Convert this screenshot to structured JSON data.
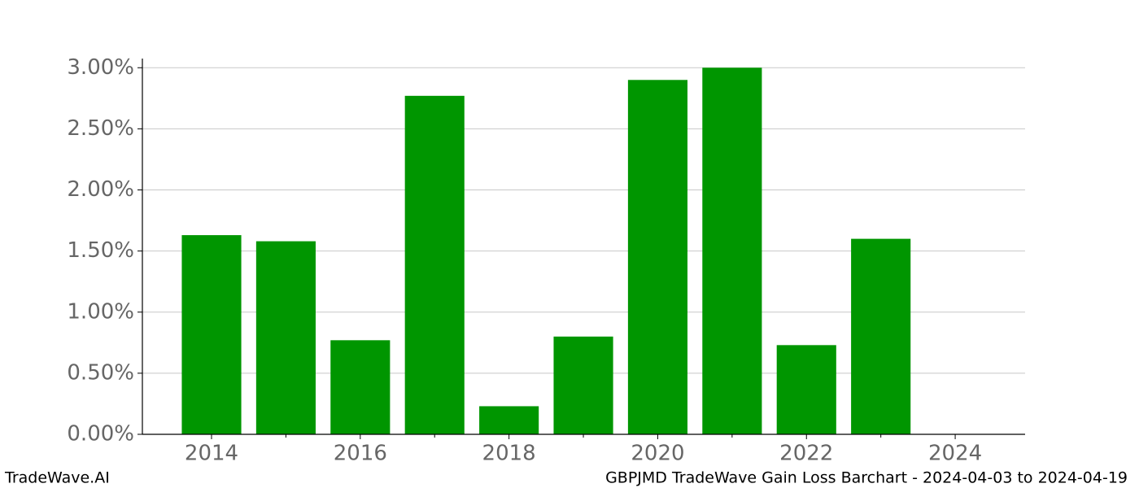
{
  "chart_data": {
    "type": "bar",
    "x": [
      2014,
      2015,
      2016,
      2017,
      2018,
      2019,
      2020,
      2021,
      2022,
      2023
    ],
    "values": [
      1.63,
      1.58,
      0.77,
      2.77,
      0.23,
      0.8,
      2.9,
      3.0,
      0.73,
      1.6
    ],
    "color": "#009600",
    "xlim": [
      2013.07,
      2024.94
    ],
    "xticks": [
      2014,
      2016,
      2018,
      2020,
      2022,
      2024
    ],
    "xminorticks": [
      2015,
      2017,
      2019,
      2021,
      2023
    ],
    "ylim": [
      0,
      3.075
    ],
    "yticks": [
      {
        "value": 0,
        "label": "0.00%"
      },
      {
        "value": 0.5,
        "label": "0.50%"
      },
      {
        "value": 1,
        "label": "1.00%"
      },
      {
        "value": 1.5,
        "label": "1.50%"
      },
      {
        "value": 2,
        "label": "2.00%"
      },
      {
        "value": 2.5,
        "label": "2.50%"
      },
      {
        "value": 3,
        "label": "3.00%"
      }
    ],
    "grid": true
  },
  "footer": {
    "left": "TradeWave.AI",
    "right": "GBPJMD TradeWave Gain Loss Barchart - 2024-04-03 to 2024-04-19"
  }
}
